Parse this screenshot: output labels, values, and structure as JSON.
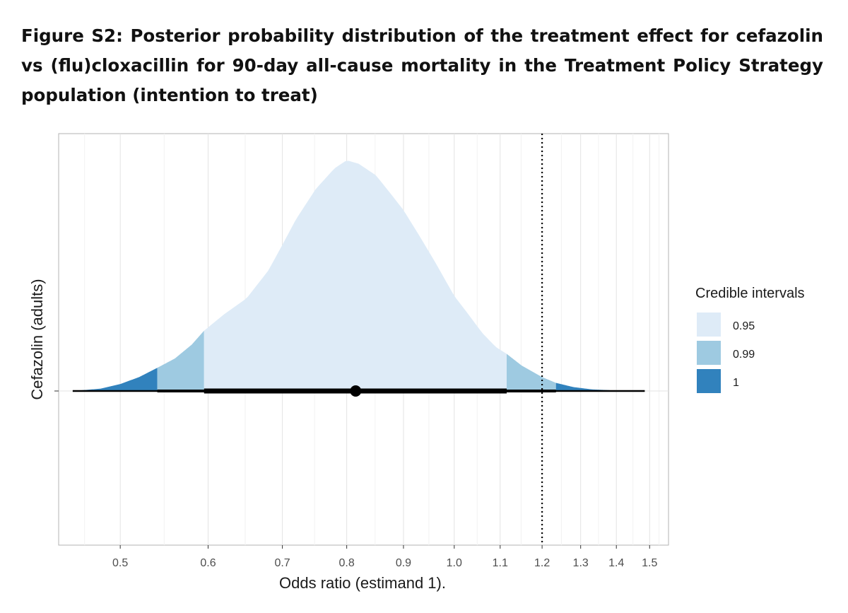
{
  "caption": "Figure S2: Posterior probability distribution of the treatment effect for cefazolin vs (flu)cloxacillin for 90-day all-cause mortality in the Treatment Policy Strategy population (intention to treat)",
  "chart_data": {
    "type": "area",
    "xlabel": "Odds ratio (estimand 1).",
    "ylabel": "Cefazolin (adults)",
    "x_scale": "log",
    "xlim": [
      0.44,
      1.56
    ],
    "x_ticks": [
      {
        "value": 0.5,
        "label": "0.5"
      },
      {
        "value": 0.6,
        "label": "0.6"
      },
      {
        "value": 0.7,
        "label": "0.7"
      },
      {
        "value": 0.8,
        "label": "0.8"
      },
      {
        "value": 0.9,
        "label": "0.9"
      },
      {
        "value": 1.0,
        "label": "1.0"
      },
      {
        "value": 1.1,
        "label": "1.1"
      },
      {
        "value": 1.2,
        "label": "1.2"
      },
      {
        "value": 1.3,
        "label": "1.3"
      },
      {
        "value": 1.4,
        "label": "1.4"
      },
      {
        "value": 1.5,
        "label": "1.5"
      }
    ],
    "grid": true,
    "reference_line": {
      "x": 1.2,
      "style": "dotted"
    },
    "point_estimate": 0.815,
    "intervals": [
      {
        "level": "0.95",
        "lower": 0.595,
        "upper": 1.115
      },
      {
        "level": "0.99",
        "lower": 0.54,
        "upper": 1.235
      },
      {
        "level": "1",
        "lower": 0.453,
        "upper": 1.485
      }
    ],
    "density": {
      "x": [
        0.453,
        0.48,
        0.5,
        0.52,
        0.54,
        0.56,
        0.58,
        0.595,
        0.62,
        0.65,
        0.68,
        0.7,
        0.72,
        0.75,
        0.78,
        0.8,
        0.82,
        0.85,
        0.88,
        0.9,
        0.93,
        0.96,
        1.0,
        1.03,
        1.06,
        1.09,
        1.115,
        1.15,
        1.2,
        1.235,
        1.28,
        1.33,
        1.4,
        1.485
      ],
      "y": [
        0.0,
        0.01,
        0.03,
        0.06,
        0.1,
        0.14,
        0.2,
        0.26,
        0.33,
        0.4,
        0.52,
        0.63,
        0.74,
        0.87,
        0.96,
        0.995,
        0.98,
        0.93,
        0.84,
        0.78,
        0.67,
        0.56,
        0.41,
        0.33,
        0.25,
        0.19,
        0.16,
        0.11,
        0.06,
        0.035,
        0.017,
        0.007,
        0.002,
        0.0
      ]
    },
    "legend": {
      "title": "Credible intervals",
      "position": "right",
      "items": [
        {
          "label": "0.95",
          "color": "#deebf7"
        },
        {
          "label": "0.99",
          "color": "#9ecae1"
        },
        {
          "label": "1",
          "color": "#3182bd"
        }
      ]
    }
  }
}
